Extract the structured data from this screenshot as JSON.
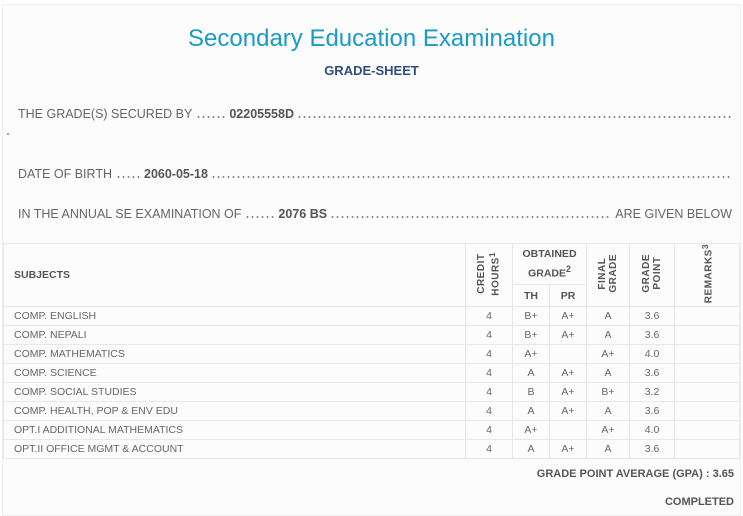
{
  "header": {
    "title": "Secondary Education Examination",
    "subtitle": "GRADE-SHEET"
  },
  "info": {
    "secured_label": "THE GRADE(S) SECURED BY",
    "symbol_no": "02205558D",
    "dob_label": "DATE OF BIRTH",
    "dob": "2060-05-18",
    "exam_label": "IN THE ANNUAL SE EXAMINATION OF",
    "exam_year": "2076 BS",
    "exam_suffix": "ARE GIVEN BELOW"
  },
  "table": {
    "headers": {
      "subjects": "SUBJECTS",
      "credit_line1": "CREDIT",
      "credit_line2": "HOURS",
      "credit_sup": "1",
      "obtained": "OBTAINED GRADE",
      "obtained_sup": "2",
      "th": "TH",
      "pr": "PR",
      "final_line1": "FINAL",
      "final_line2": "GRADE",
      "gp_line1": "GRADE",
      "gp_line2": "POINT",
      "remarks": "REMARKS",
      "remarks_sup": "3"
    },
    "rows": [
      {
        "subject": "COMP. ENGLISH",
        "credit": "4",
        "th": "B+",
        "pr": "A+",
        "final": "A",
        "gp": "3.6",
        "remarks": ""
      },
      {
        "subject": "COMP. NEPALI",
        "credit": "4",
        "th": "B+",
        "pr": "A+",
        "final": "A",
        "gp": "3.6",
        "remarks": ""
      },
      {
        "subject": "COMP. MATHEMATICS",
        "credit": "4",
        "th": "A+",
        "pr": "",
        "final": "A+",
        "gp": "4.0",
        "remarks": ""
      },
      {
        "subject": "COMP. SCIENCE",
        "credit": "4",
        "th": "A",
        "pr": "A+",
        "final": "A",
        "gp": "3.6",
        "remarks": ""
      },
      {
        "subject": "COMP. SOCIAL STUDIES",
        "credit": "4",
        "th": "B",
        "pr": "A+",
        "final": "B+",
        "gp": "3.2",
        "remarks": ""
      },
      {
        "subject": "COMP. HEALTH, POP & ENV EDU",
        "credit": "4",
        "th": "A",
        "pr": "A+",
        "final": "A",
        "gp": "3.6",
        "remarks": ""
      },
      {
        "subject": "OPT.I ADDITIONAL MATHEMATICS",
        "credit": "4",
        "th": "A+",
        "pr": "",
        "final": "A+",
        "gp": "4.0",
        "remarks": ""
      },
      {
        "subject": "OPT.II OFFICE MGMT & ACCOUNT",
        "credit": "4",
        "th": "A",
        "pr": "A+",
        "final": "A",
        "gp": "3.6",
        "remarks": ""
      }
    ]
  },
  "footer": {
    "gpa_label": "GRADE POINT AVERAGE (GPA) :",
    "gpa": "3.65",
    "status": "COMPLETED"
  }
}
